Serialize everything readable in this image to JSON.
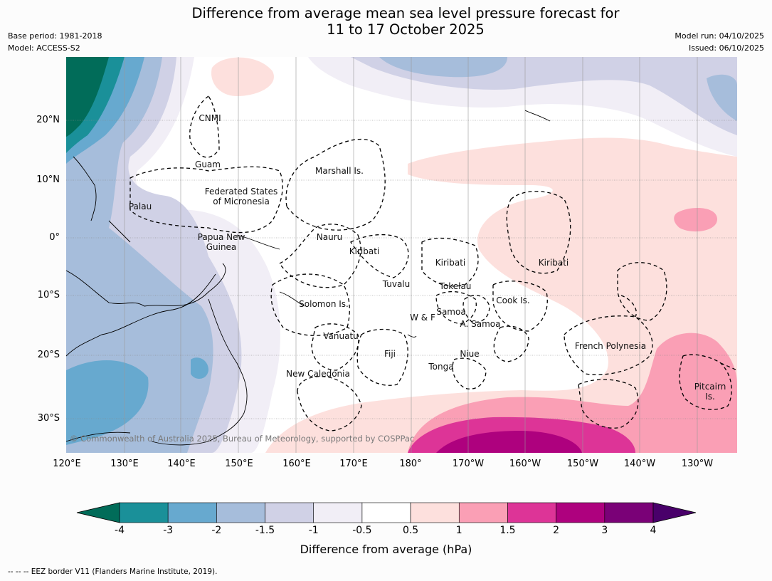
{
  "title": {
    "line1": "Difference from average mean sea level pressure forecast for",
    "line2": "11 to 17 October 2025"
  },
  "meta_left": {
    "base_period": "Base period: 1981-2018",
    "model": "Model: ACCESS-S2"
  },
  "meta_right": {
    "model_run": "Model run: 04/10/2025",
    "issued": "Issued: 06/10/2025"
  },
  "axes": {
    "lat_labels": [
      "20°N",
      "10°N",
      "0°",
      "10°S",
      "20°S",
      "30°S"
    ],
    "lon_labels": [
      "120°E",
      "130°E",
      "140°E",
      "150°E",
      "160°E",
      "170°E",
      "180°",
      "170°W",
      "160°W",
      "150°W",
      "140°W",
      "130°W"
    ]
  },
  "regions": {
    "cnmi": "CNMI",
    "guam": "Guam",
    "marshall": "Marshall Is.",
    "fsm_line1": "Federated States",
    "fsm_line2": "of Micronesia",
    "palau": "Palau",
    "png_line1": "Papua New",
    "png_line2": "Guinea",
    "nauru": "Nauru",
    "kiribati_w": "Kiribati",
    "kiribati_c": "Kiribati",
    "kiribati_e": "Kiribati",
    "tuvalu": "Tuvalu",
    "tokelau": "Tokelau",
    "solomon": "Solomon Is.",
    "cook": "Cook Is.",
    "samoa": "Samoa",
    "wf": "W & F",
    "asamoa": "A. Samoa",
    "vanuatu": "Vanuatu",
    "fiji": "Fiji",
    "niue": "Niue",
    "tonga": "Tonga",
    "frenchpoly": "French Polynesia",
    "newcal": "New Caledonia",
    "pitcairn_line1": "Pitcairn",
    "pitcairn_line2": "Is."
  },
  "copyright": "© Commonwealth of Australia 2025, Bureau of Meteorology, supported by COSPPac",
  "colorbar": {
    "ticks": [
      "-4",
      "-3",
      "-2",
      "-1.5",
      "-1",
      "-0.5",
      "0.5",
      "1",
      "1.5",
      "2",
      "3",
      "4"
    ],
    "colors": [
      "#1a9099",
      "#67a9cf",
      "#a6bddb",
      "#d0d1e6",
      "#f1eef6",
      "#ffffff",
      "#fde0dd",
      "#fa9fb5",
      "#dd3497",
      "#ae017e",
      "#7a0177"
    ],
    "under_color": "#016c59",
    "over_color": "#49006a",
    "label": "Difference from average (hPa)"
  },
  "footnote": "--  --  -- EEZ border V11 (Flanders Marine Institute, 2019)."
}
